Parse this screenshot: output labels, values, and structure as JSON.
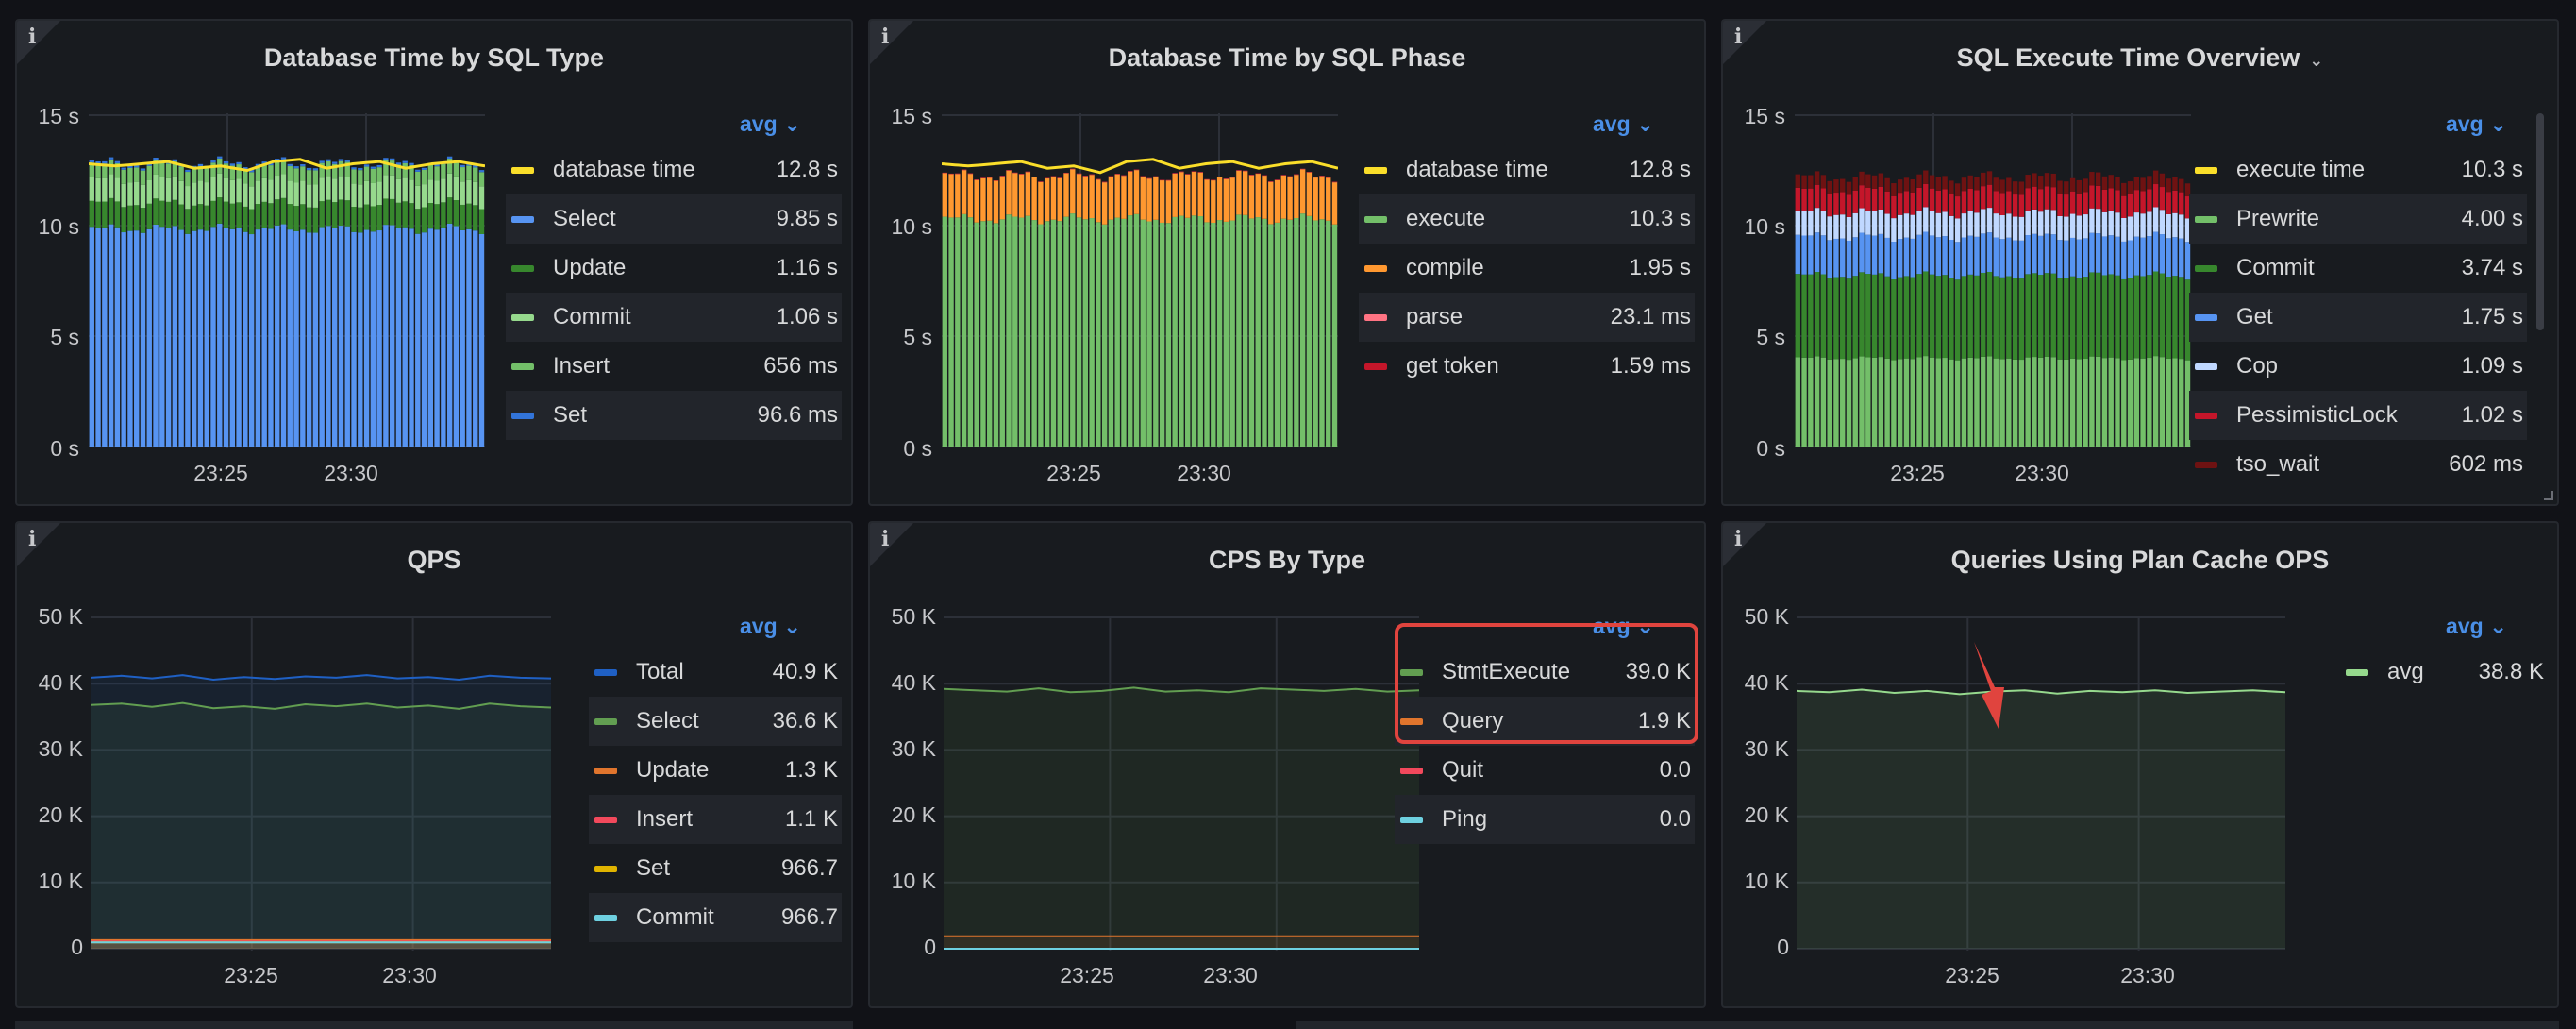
{
  "colors": {
    "yellow": "#fade2a",
    "blue": "#5794f2",
    "dkgreen": "#37872d",
    "ltgreen": "#96d98d",
    "green": "#73bf69",
    "bluedk": "#3274d9",
    "orange": "#ff9830",
    "pink": "#ff7383",
    "red": "#c4162a",
    "paleblue": "#c0d8ff",
    "darkred": "#8f1b1b",
    "maroon": "#6e1212",
    "navy": "#1f60c4",
    "qgreen": "#629e51",
    "qorange": "#e0752d",
    "qred": "#f2495c",
    "qyellow": "#e0b400",
    "cyan": "#6ed0e0",
    "callout": "#e0443e"
  },
  "panels": [
    {
      "title": "Database Time by SQL Type",
      "info_icon": "info-icon",
      "legend_mode": "avg",
      "legend": [
        {
          "name": "database time",
          "value": "12.8 s",
          "color": "#fade2a"
        },
        {
          "name": "Select",
          "value": "9.85 s",
          "color": "#5794f2"
        },
        {
          "name": "Update",
          "value": "1.16 s",
          "color": "#37872d"
        },
        {
          "name": "Commit",
          "value": "1.06 s",
          "color": "#96d98d"
        },
        {
          "name": "Insert",
          "value": "656 ms",
          "color": "#73bf69"
        },
        {
          "name": "Set",
          "value": "96.6 ms",
          "color": "#3274d9"
        }
      ],
      "y_ticks": [
        "15 s",
        "10 s",
        "5 s",
        "0 s"
      ],
      "x_ticks": [
        "23:25",
        "23:30"
      ]
    },
    {
      "title": "Database Time by SQL Phase",
      "info_icon": "info-icon",
      "legend_mode": "avg",
      "legend": [
        {
          "name": "database time",
          "value": "12.8 s",
          "color": "#fade2a"
        },
        {
          "name": "execute",
          "value": "10.3 s",
          "color": "#73bf69"
        },
        {
          "name": "compile",
          "value": "1.95 s",
          "color": "#ff9830"
        },
        {
          "name": "parse",
          "value": "23.1 ms",
          "color": "#ff7383"
        },
        {
          "name": "get token",
          "value": "1.59 ms",
          "color": "#c4162a"
        }
      ],
      "y_ticks": [
        "15 s",
        "10 s",
        "5 s",
        "0 s"
      ],
      "x_ticks": [
        "23:25",
        "23:30"
      ]
    },
    {
      "title": "SQL Execute Time Overview",
      "title_menu_icon": "chevron-down-icon",
      "info_icon": "info-icon",
      "legend_mode": "avg",
      "legend": [
        {
          "name": "execute time",
          "value": "10.3 s",
          "color": "#fade2a"
        },
        {
          "name": "Prewrite",
          "value": "4.00 s",
          "color": "#73bf69"
        },
        {
          "name": "Commit",
          "value": "3.74 s",
          "color": "#37872d"
        },
        {
          "name": "Get",
          "value": "1.75 s",
          "color": "#5794f2"
        },
        {
          "name": "Cop",
          "value": "1.09 s",
          "color": "#c0d8ff"
        },
        {
          "name": "PessimisticLock",
          "value": "1.02 s",
          "color": "#c4162a"
        },
        {
          "name": "tso_wait",
          "value": "602 ms",
          "color": "#6e1212"
        }
      ],
      "y_ticks": [
        "15 s",
        "10 s",
        "5 s",
        "0 s"
      ],
      "x_ticks": [
        "23:25",
        "23:30"
      ]
    },
    {
      "title": "QPS",
      "info_icon": "info-icon",
      "legend_mode": "avg",
      "legend": [
        {
          "name": "Total",
          "value": "40.9 K",
          "color": "#1f60c4"
        },
        {
          "name": "Select",
          "value": "36.6 K",
          "color": "#629e51"
        },
        {
          "name": "Update",
          "value": "1.3 K",
          "color": "#e0752d"
        },
        {
          "name": "Insert",
          "value": "1.1 K",
          "color": "#f2495c"
        },
        {
          "name": "Set",
          "value": "966.7",
          "color": "#e0b400"
        },
        {
          "name": "Commit",
          "value": "966.7",
          "color": "#6ed0e0"
        }
      ],
      "y_ticks": [
        "50 K",
        "40 K",
        "30 K",
        "20 K",
        "10 K",
        "0"
      ],
      "x_ticks": [
        "23:25",
        "23:30"
      ]
    },
    {
      "title": "CPS By Type",
      "info_icon": "info-icon",
      "legend_mode": "avg",
      "legend": [
        {
          "name": "StmtExecute",
          "value": "39.0 K",
          "color": "#629e51"
        },
        {
          "name": "Query",
          "value": "1.9 K",
          "color": "#e0752d"
        },
        {
          "name": "Quit",
          "value": "0.0",
          "color": "#f2495c"
        },
        {
          "name": "Ping",
          "value": "0.0",
          "color": "#6ed0e0"
        }
      ],
      "y_ticks": [
        "50 K",
        "40 K",
        "30 K",
        "20 K",
        "10 K",
        "0"
      ],
      "x_ticks": [
        "23:25",
        "23:30"
      ]
    },
    {
      "title": "Queries Using Plan Cache OPS",
      "info_icon": "info-icon",
      "legend_mode": "avg",
      "legend": [
        {
          "name": "avg",
          "value": "38.8 K",
          "color": "#96d98d"
        }
      ],
      "y_ticks": [
        "50 K",
        "40 K",
        "30 K",
        "20 K",
        "10 K",
        "0"
      ],
      "x_ticks": [
        "23:25",
        "23:30"
      ]
    }
  ],
  "chart_data": [
    {
      "type": "bar",
      "title": "Database Time by SQL Type",
      "stacked": true,
      "ylim": [
        0,
        15
      ],
      "y_unit": "s",
      "x_ticks": [
        "23:25",
        "23:30"
      ],
      "series": [
        {
          "name": "Select",
          "value_avg": 9.85
        },
        {
          "name": "Update",
          "value_avg": 1.16
        },
        {
          "name": "Commit",
          "value_avg": 1.06
        },
        {
          "name": "Insert",
          "value_avg": 0.656
        },
        {
          "name": "Set",
          "value_avg": 0.0966
        }
      ],
      "line": {
        "name": "database time",
        "value_avg": 12.8,
        "values": [
          12.8,
          12.7,
          12.8,
          12.9,
          12.6,
          12.7,
          12.5,
          12.9,
          13.0,
          12.6,
          12.8,
          12.9,
          12.6,
          12.8,
          12.9,
          12.7
        ]
      },
      "grid": true
    },
    {
      "type": "bar",
      "title": "Database Time by SQL Phase",
      "stacked": true,
      "ylim": [
        0,
        15
      ],
      "y_unit": "s",
      "x_ticks": [
        "23:25",
        "23:30"
      ],
      "series": [
        {
          "name": "execute",
          "value_avg": 10.3
        },
        {
          "name": "compile",
          "value_avg": 1.95
        },
        {
          "name": "parse",
          "value_avg": 0.0231
        },
        {
          "name": "get token",
          "value_avg": 0.00159
        }
      ],
      "line": {
        "name": "database time",
        "value_avg": 12.8,
        "values": [
          12.8,
          12.7,
          12.8,
          12.9,
          12.6,
          12.7,
          12.4,
          12.9,
          13.0,
          12.6,
          12.8,
          12.9,
          12.6,
          12.8,
          12.9,
          12.6
        ]
      },
      "grid": true
    },
    {
      "type": "bar",
      "title": "SQL Execute Time Overview",
      "stacked": true,
      "ylim": [
        0,
        15
      ],
      "y_unit": "s",
      "x_ticks": [
        "23:25",
        "23:30"
      ],
      "series": [
        {
          "name": "Prewrite",
          "value_avg": 4.0
        },
        {
          "name": "Commit",
          "value_avg": 3.74
        },
        {
          "name": "Get",
          "value_avg": 1.75
        },
        {
          "name": "Cop",
          "value_avg": 1.09
        },
        {
          "name": "PessimisticLock",
          "value_avg": 1.02
        },
        {
          "name": "tso_wait",
          "value_avg": 0.602
        }
      ],
      "grid": true
    },
    {
      "type": "area",
      "title": "QPS",
      "ylim": [
        0,
        50000
      ],
      "x_ticks": [
        "23:25",
        "23:30"
      ],
      "series": [
        {
          "name": "Total",
          "value_avg": 40900,
          "values": [
            40900,
            41200,
            40800,
            41300,
            40600,
            41000,
            40700,
            41100,
            40900,
            41300,
            40800,
            41000,
            40600,
            41200,
            40900,
            40800
          ]
        },
        {
          "name": "Select",
          "value_avg": 36600,
          "values": [
            36800,
            37000,
            36500,
            37100,
            36300,
            36600,
            36200,
            36900,
            36600,
            37000,
            36400,
            36700,
            36200,
            37000,
            36600,
            36400
          ]
        },
        {
          "name": "Update",
          "value_avg": 1300,
          "values": [
            1300,
            1300,
            1300,
            1300,
            1300,
            1300,
            1300,
            1300,
            1300,
            1300,
            1300,
            1300,
            1300,
            1300,
            1300,
            1300
          ]
        },
        {
          "name": "Insert",
          "value_avg": 1100,
          "values": [
            1100,
            1100,
            1100,
            1100,
            1100,
            1100,
            1100,
            1100,
            1100,
            1100,
            1100,
            1100,
            1100,
            1100,
            1100,
            1100
          ]
        },
        {
          "name": "Set",
          "value_avg": 966.7,
          "values": [
            967,
            967,
            967,
            967,
            967,
            967,
            967,
            967,
            967,
            967,
            967,
            967,
            967,
            967,
            967,
            967
          ]
        },
        {
          "name": "Commit",
          "value_avg": 966.7,
          "values": [
            967,
            967,
            967,
            967,
            967,
            967,
            967,
            967,
            967,
            967,
            967,
            967,
            967,
            967,
            967,
            967
          ]
        }
      ],
      "grid": true
    },
    {
      "type": "area",
      "title": "CPS By Type",
      "ylim": [
        0,
        50000
      ],
      "x_ticks": [
        "23:25",
        "23:30"
      ],
      "series": [
        {
          "name": "StmtExecute",
          "value_avg": 39000,
          "values": [
            39200,
            39000,
            38800,
            39300,
            38700,
            38900,
            39400,
            38800,
            39000,
            38700,
            39300,
            39100,
            38900,
            39200,
            38800,
            39000
          ]
        },
        {
          "name": "Query",
          "value_avg": 1900,
          "values": [
            1900,
            1900,
            1900,
            1900,
            1900,
            1900,
            1900,
            1900,
            1900,
            1900,
            1900,
            1900,
            1900,
            1900,
            1900,
            1900
          ]
        },
        {
          "name": "Quit",
          "value_avg": 0,
          "values": [
            0,
            0,
            0,
            0,
            0,
            0,
            0,
            0,
            0,
            0,
            0,
            0,
            0,
            0,
            0,
            0
          ]
        },
        {
          "name": "Ping",
          "value_avg": 0,
          "values": [
            0,
            0,
            0,
            0,
            0,
            0,
            0,
            0,
            0,
            0,
            0,
            0,
            0,
            0,
            0,
            0
          ]
        }
      ],
      "grid": true
    },
    {
      "type": "area",
      "title": "Queries Using Plan Cache OPS",
      "ylim": [
        0,
        50000
      ],
      "x_ticks": [
        "23:25",
        "23:30"
      ],
      "series": [
        {
          "name": "avg",
          "value_avg": 38800,
          "values": [
            38900,
            38700,
            39100,
            38600,
            38900,
            38400,
            38800,
            39000,
            38500,
            38900,
            38700,
            39000,
            38600,
            38800,
            39000,
            38700
          ]
        }
      ],
      "grid": true
    }
  ]
}
